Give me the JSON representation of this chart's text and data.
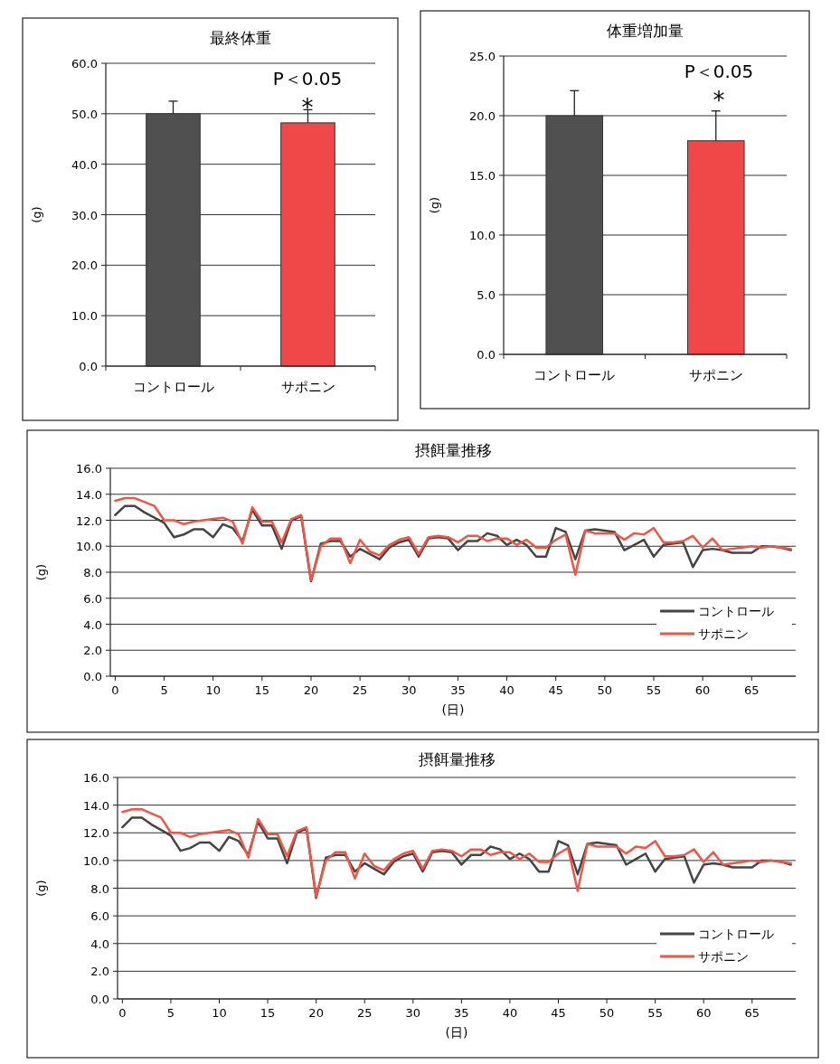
{
  "chart_data": [
    {
      "type": "bar",
      "title": "最終体重",
      "ylabel": "(g)",
      "categories": [
        "コントロール",
        "サポニン"
      ],
      "values": [
        50.0,
        48.2
      ],
      "colors": [
        "#505050",
        "#f04848"
      ],
      "errors": [
        [
          50.0,
          52.5
        ],
        [
          48.2,
          50.8
        ]
      ],
      "ylim": [
        0,
        60
      ],
      "yticks": [
        {
          "value": 0,
          "label": "0.0"
        },
        {
          "value": 10,
          "label": "10.0"
        },
        {
          "value": 20,
          "label": "20.0"
        },
        {
          "value": 30,
          "label": "30.0"
        },
        {
          "value": 40,
          "label": "40.0"
        },
        {
          "value": 50,
          "label": "50.0"
        },
        {
          "value": 60,
          "label": "60.0"
        }
      ],
      "grid": "y",
      "annotations": [
        "P＜0.05",
        "*"
      ]
    },
    {
      "type": "bar",
      "title": "体重増加量",
      "ylabel": "(g)",
      "categories": [
        "コントロール",
        "サポニン"
      ],
      "values": [
        20.0,
        17.9
      ],
      "colors": [
        "#505050",
        "#f04848"
      ],
      "errors": [
        [
          20.0,
          22.1
        ],
        [
          17.9,
          20.4
        ]
      ],
      "ylim": [
        0,
        25
      ],
      "yticks": [
        {
          "value": 0,
          "label": "0.0"
        },
        {
          "value": 5,
          "label": "5.0"
        },
        {
          "value": 10,
          "label": "10.0"
        },
        {
          "value": 15,
          "label": "15.0"
        },
        {
          "value": 20,
          "label": "20.0"
        },
        {
          "value": 25,
          "label": "25.0"
        }
      ],
      "grid": "y",
      "annotations": [
        "P＜0.05",
        "*"
      ]
    },
    {
      "type": "line",
      "title": "摂餌量推移",
      "ylabel": "(g)",
      "xlabel": "(日)",
      "x": [
        0,
        1,
        2,
        3,
        4,
        5,
        6,
        7,
        8,
        9,
        10,
        11,
        12,
        13,
        14,
        15,
        16,
        17,
        18,
        19,
        20,
        21,
        22,
        23,
        24,
        25,
        26,
        27,
        28,
        29,
        30,
        31,
        32,
        33,
        34,
        35,
        36,
        37,
        38,
        39,
        40,
        41,
        42,
        43,
        44,
        45,
        46,
        47,
        48,
        49,
        50,
        51,
        52,
        53,
        54,
        55,
        56,
        57,
        58,
        59,
        60,
        61,
        62,
        63,
        64,
        65,
        66,
        67,
        68,
        69
      ],
      "series": [
        {
          "name": "コントロール",
          "color": "#454545",
          "values": [
            12.4,
            13.1,
            13.1,
            12.6,
            12.2,
            11.8,
            10.7,
            10.9,
            11.3,
            11.3,
            10.7,
            11.7,
            11.4,
            10.4,
            12.8,
            11.6,
            11.6,
            9.8,
            12.0,
            12.3,
            7.3,
            10.2,
            10.4,
            10.4,
            9.2,
            9.8,
            9.4,
            9.0,
            9.9,
            10.3,
            10.5,
            9.2,
            10.6,
            10.7,
            10.6,
            9.7,
            10.4,
            10.4,
            11.0,
            10.8,
            10.1,
            10.5,
            10.1,
            9.2,
            9.2,
            11.4,
            11.1,
            9.0,
            11.2,
            11.3,
            11.2,
            11.1,
            9.7,
            10.1,
            10.5,
            9.2,
            10.1,
            10.2,
            10.3,
            8.4,
            9.7,
            9.8,
            9.7,
            9.5,
            9.5,
            9.5,
            10.0,
            10.0,
            9.9,
            9.7
          ]
        },
        {
          "name": "サポニン",
          "color": "#f05545",
          "values": [
            13.5,
            13.7,
            13.7,
            13.4,
            13.1,
            12.0,
            12.0,
            11.7,
            11.9,
            12.0,
            12.1,
            12.2,
            11.9,
            10.2,
            13.0,
            11.9,
            11.9,
            10.3,
            12.1,
            12.4,
            7.4,
            10.0,
            10.6,
            10.6,
            8.7,
            10.5,
            9.6,
            9.3,
            10.1,
            10.5,
            10.7,
            9.4,
            10.7,
            10.8,
            10.7,
            10.3,
            10.8,
            10.8,
            10.4,
            10.6,
            10.6,
            10.1,
            10.5,
            9.9,
            9.9,
            10.5,
            10.9,
            7.8,
            11.2,
            11.0,
            11.0,
            11.0,
            10.5,
            11.0,
            10.9,
            11.4,
            10.3,
            10.3,
            10.4,
            10.8,
            9.9,
            10.6,
            9.7,
            9.8,
            9.9,
            10.0,
            9.9,
            10.0,
            9.9,
            9.8
          ]
        }
      ],
      "xlim": [
        -0.5,
        69.5
      ],
      "xticks": [
        0,
        5,
        10,
        15,
        20,
        25,
        30,
        35,
        40,
        45,
        50,
        55,
        60,
        65
      ],
      "ylim": [
        0,
        16
      ],
      "yticks": [
        {
          "value": 0,
          "label": "0.0"
        },
        {
          "value": 2,
          "label": "2.0"
        },
        {
          "value": 4,
          "label": "4.0"
        },
        {
          "value": 6,
          "label": "6.0"
        },
        {
          "value": 8,
          "label": "8.0"
        },
        {
          "value": 10,
          "label": "10.0"
        },
        {
          "value": 12,
          "label": "12.0"
        },
        {
          "value": 14,
          "label": "14.0"
        },
        {
          "value": 16,
          "label": "16.0"
        }
      ],
      "grid": "y",
      "legend": "bottom right",
      "marker": "none",
      "line_style": "solid"
    },
    {
      "type": "line",
      "title": "摂餌量推移",
      "ylabel": "(g)",
      "xlabel": "(日)",
      "x": [
        0,
        1,
        2,
        3,
        4,
        5,
        6,
        7,
        8,
        9,
        10,
        11,
        12,
        13,
        14,
        15,
        16,
        17,
        18,
        19,
        20,
        21,
        22,
        23,
        24,
        25,
        26,
        27,
        28,
        29,
        30,
        31,
        32,
        33,
        34,
        35,
        36,
        37,
        38,
        39,
        40,
        41,
        42,
        43,
        44,
        45,
        46,
        47,
        48,
        49,
        50,
        51,
        52,
        53,
        54,
        55,
        56,
        57,
        58,
        59,
        60,
        61,
        62,
        63,
        64,
        65,
        66,
        67,
        68,
        69
      ],
      "series": [
        {
          "name": "コントロール",
          "color": "#454545",
          "values": [
            12.4,
            13.1,
            13.1,
            12.6,
            12.2,
            11.8,
            10.7,
            10.9,
            11.3,
            11.3,
            10.7,
            11.7,
            11.4,
            10.4,
            12.8,
            11.6,
            11.6,
            9.8,
            12.0,
            12.3,
            7.3,
            10.2,
            10.4,
            10.4,
            9.2,
            9.8,
            9.4,
            9.0,
            9.9,
            10.3,
            10.5,
            9.2,
            10.6,
            10.7,
            10.6,
            9.7,
            10.4,
            10.4,
            11.0,
            10.8,
            10.1,
            10.5,
            10.1,
            9.2,
            9.2,
            11.4,
            11.1,
            9.0,
            11.2,
            11.3,
            11.2,
            11.1,
            9.7,
            10.1,
            10.5,
            9.2,
            10.1,
            10.2,
            10.3,
            8.4,
            9.7,
            9.8,
            9.7,
            9.5,
            9.5,
            9.5,
            10.0,
            10.0,
            9.9,
            9.7
          ]
        },
        {
          "name": "サポニン",
          "color": "#f05545",
          "values": [
            13.5,
            13.7,
            13.7,
            13.4,
            13.1,
            12.0,
            12.0,
            11.7,
            11.9,
            12.0,
            12.1,
            12.2,
            11.9,
            10.2,
            13.0,
            11.9,
            11.9,
            10.3,
            12.1,
            12.4,
            7.4,
            10.0,
            10.6,
            10.6,
            8.7,
            10.5,
            9.6,
            9.3,
            10.1,
            10.5,
            10.7,
            9.4,
            10.7,
            10.8,
            10.7,
            10.3,
            10.8,
            10.8,
            10.4,
            10.6,
            10.6,
            10.1,
            10.5,
            9.9,
            9.9,
            10.5,
            10.9,
            7.8,
            11.2,
            11.0,
            11.0,
            11.0,
            10.5,
            11.0,
            10.9,
            11.4,
            10.3,
            10.3,
            10.4,
            10.8,
            9.9,
            10.6,
            9.7,
            9.8,
            9.9,
            10.0,
            9.9,
            10.0,
            9.9,
            9.8
          ]
        }
      ],
      "xlim": [
        -0.5,
        69.5
      ],
      "xticks": [
        0,
        5,
        10,
        15,
        20,
        25,
        30,
        35,
        40,
        45,
        50,
        55,
        60,
        65
      ],
      "ylim": [
        0,
        16
      ],
      "yticks": [
        {
          "value": 0,
          "label": "0.0"
        },
        {
          "value": 2,
          "label": "2.0"
        },
        {
          "value": 4,
          "label": "4.0"
        },
        {
          "value": 6,
          "label": "6.0"
        },
        {
          "value": 8,
          "label": "8.0"
        },
        {
          "value": 10,
          "label": "10.0"
        },
        {
          "value": 12,
          "label": "12.0"
        },
        {
          "value": 14,
          "label": "14.0"
        },
        {
          "value": 16,
          "label": "16.0"
        }
      ],
      "grid": "y",
      "legend": "bottom right",
      "marker": "none",
      "line_style": "solid"
    }
  ]
}
